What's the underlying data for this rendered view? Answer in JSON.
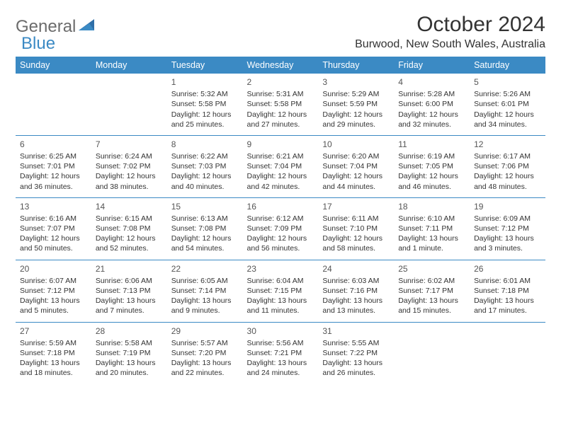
{
  "logo": {
    "text1": "General",
    "text2": "Blue"
  },
  "title": "October 2024",
  "location": "Burwood, New South Wales, Australia",
  "colors": {
    "header_bg": "#3b8ac4",
    "header_text": "#ffffff",
    "cell_border": "#3b8ac4",
    "body_text": "#333333",
    "logo_gray": "#6b6b6b",
    "logo_blue": "#3b8ac4",
    "page_bg": "#ffffff"
  },
  "day_headers": [
    "Sunday",
    "Monday",
    "Tuesday",
    "Wednesday",
    "Thursday",
    "Friday",
    "Saturday"
  ],
  "weeks": [
    [
      null,
      null,
      {
        "n": "1",
        "sr": "Sunrise: 5:32 AM",
        "ss": "Sunset: 5:58 PM",
        "d1": "Daylight: 12 hours",
        "d2": "and 25 minutes."
      },
      {
        "n": "2",
        "sr": "Sunrise: 5:31 AM",
        "ss": "Sunset: 5:58 PM",
        "d1": "Daylight: 12 hours",
        "d2": "and 27 minutes."
      },
      {
        "n": "3",
        "sr": "Sunrise: 5:29 AM",
        "ss": "Sunset: 5:59 PM",
        "d1": "Daylight: 12 hours",
        "d2": "and 29 minutes."
      },
      {
        "n": "4",
        "sr": "Sunrise: 5:28 AM",
        "ss": "Sunset: 6:00 PM",
        "d1": "Daylight: 12 hours",
        "d2": "and 32 minutes."
      },
      {
        "n": "5",
        "sr": "Sunrise: 5:26 AM",
        "ss": "Sunset: 6:01 PM",
        "d1": "Daylight: 12 hours",
        "d2": "and 34 minutes."
      }
    ],
    [
      {
        "n": "6",
        "sr": "Sunrise: 6:25 AM",
        "ss": "Sunset: 7:01 PM",
        "d1": "Daylight: 12 hours",
        "d2": "and 36 minutes."
      },
      {
        "n": "7",
        "sr": "Sunrise: 6:24 AM",
        "ss": "Sunset: 7:02 PM",
        "d1": "Daylight: 12 hours",
        "d2": "and 38 minutes."
      },
      {
        "n": "8",
        "sr": "Sunrise: 6:22 AM",
        "ss": "Sunset: 7:03 PM",
        "d1": "Daylight: 12 hours",
        "d2": "and 40 minutes."
      },
      {
        "n": "9",
        "sr": "Sunrise: 6:21 AM",
        "ss": "Sunset: 7:04 PM",
        "d1": "Daylight: 12 hours",
        "d2": "and 42 minutes."
      },
      {
        "n": "10",
        "sr": "Sunrise: 6:20 AM",
        "ss": "Sunset: 7:04 PM",
        "d1": "Daylight: 12 hours",
        "d2": "and 44 minutes."
      },
      {
        "n": "11",
        "sr": "Sunrise: 6:19 AM",
        "ss": "Sunset: 7:05 PM",
        "d1": "Daylight: 12 hours",
        "d2": "and 46 minutes."
      },
      {
        "n": "12",
        "sr": "Sunrise: 6:17 AM",
        "ss": "Sunset: 7:06 PM",
        "d1": "Daylight: 12 hours",
        "d2": "and 48 minutes."
      }
    ],
    [
      {
        "n": "13",
        "sr": "Sunrise: 6:16 AM",
        "ss": "Sunset: 7:07 PM",
        "d1": "Daylight: 12 hours",
        "d2": "and 50 minutes."
      },
      {
        "n": "14",
        "sr": "Sunrise: 6:15 AM",
        "ss": "Sunset: 7:08 PM",
        "d1": "Daylight: 12 hours",
        "d2": "and 52 minutes."
      },
      {
        "n": "15",
        "sr": "Sunrise: 6:13 AM",
        "ss": "Sunset: 7:08 PM",
        "d1": "Daylight: 12 hours",
        "d2": "and 54 minutes."
      },
      {
        "n": "16",
        "sr": "Sunrise: 6:12 AM",
        "ss": "Sunset: 7:09 PM",
        "d1": "Daylight: 12 hours",
        "d2": "and 56 minutes."
      },
      {
        "n": "17",
        "sr": "Sunrise: 6:11 AM",
        "ss": "Sunset: 7:10 PM",
        "d1": "Daylight: 12 hours",
        "d2": "and 58 minutes."
      },
      {
        "n": "18",
        "sr": "Sunrise: 6:10 AM",
        "ss": "Sunset: 7:11 PM",
        "d1": "Daylight: 13 hours",
        "d2": "and 1 minute."
      },
      {
        "n": "19",
        "sr": "Sunrise: 6:09 AM",
        "ss": "Sunset: 7:12 PM",
        "d1": "Daylight: 13 hours",
        "d2": "and 3 minutes."
      }
    ],
    [
      {
        "n": "20",
        "sr": "Sunrise: 6:07 AM",
        "ss": "Sunset: 7:12 PM",
        "d1": "Daylight: 13 hours",
        "d2": "and 5 minutes."
      },
      {
        "n": "21",
        "sr": "Sunrise: 6:06 AM",
        "ss": "Sunset: 7:13 PM",
        "d1": "Daylight: 13 hours",
        "d2": "and 7 minutes."
      },
      {
        "n": "22",
        "sr": "Sunrise: 6:05 AM",
        "ss": "Sunset: 7:14 PM",
        "d1": "Daylight: 13 hours",
        "d2": "and 9 minutes."
      },
      {
        "n": "23",
        "sr": "Sunrise: 6:04 AM",
        "ss": "Sunset: 7:15 PM",
        "d1": "Daylight: 13 hours",
        "d2": "and 11 minutes."
      },
      {
        "n": "24",
        "sr": "Sunrise: 6:03 AM",
        "ss": "Sunset: 7:16 PM",
        "d1": "Daylight: 13 hours",
        "d2": "and 13 minutes."
      },
      {
        "n": "25",
        "sr": "Sunrise: 6:02 AM",
        "ss": "Sunset: 7:17 PM",
        "d1": "Daylight: 13 hours",
        "d2": "and 15 minutes."
      },
      {
        "n": "26",
        "sr": "Sunrise: 6:01 AM",
        "ss": "Sunset: 7:18 PM",
        "d1": "Daylight: 13 hours",
        "d2": "and 17 minutes."
      }
    ],
    [
      {
        "n": "27",
        "sr": "Sunrise: 5:59 AM",
        "ss": "Sunset: 7:18 PM",
        "d1": "Daylight: 13 hours",
        "d2": "and 18 minutes."
      },
      {
        "n": "28",
        "sr": "Sunrise: 5:58 AM",
        "ss": "Sunset: 7:19 PM",
        "d1": "Daylight: 13 hours",
        "d2": "and 20 minutes."
      },
      {
        "n": "29",
        "sr": "Sunrise: 5:57 AM",
        "ss": "Sunset: 7:20 PM",
        "d1": "Daylight: 13 hours",
        "d2": "and 22 minutes."
      },
      {
        "n": "30",
        "sr": "Sunrise: 5:56 AM",
        "ss": "Sunset: 7:21 PM",
        "d1": "Daylight: 13 hours",
        "d2": "and 24 minutes."
      },
      {
        "n": "31",
        "sr": "Sunrise: 5:55 AM",
        "ss": "Sunset: 7:22 PM",
        "d1": "Daylight: 13 hours",
        "d2": "and 26 minutes."
      },
      null,
      null
    ]
  ]
}
